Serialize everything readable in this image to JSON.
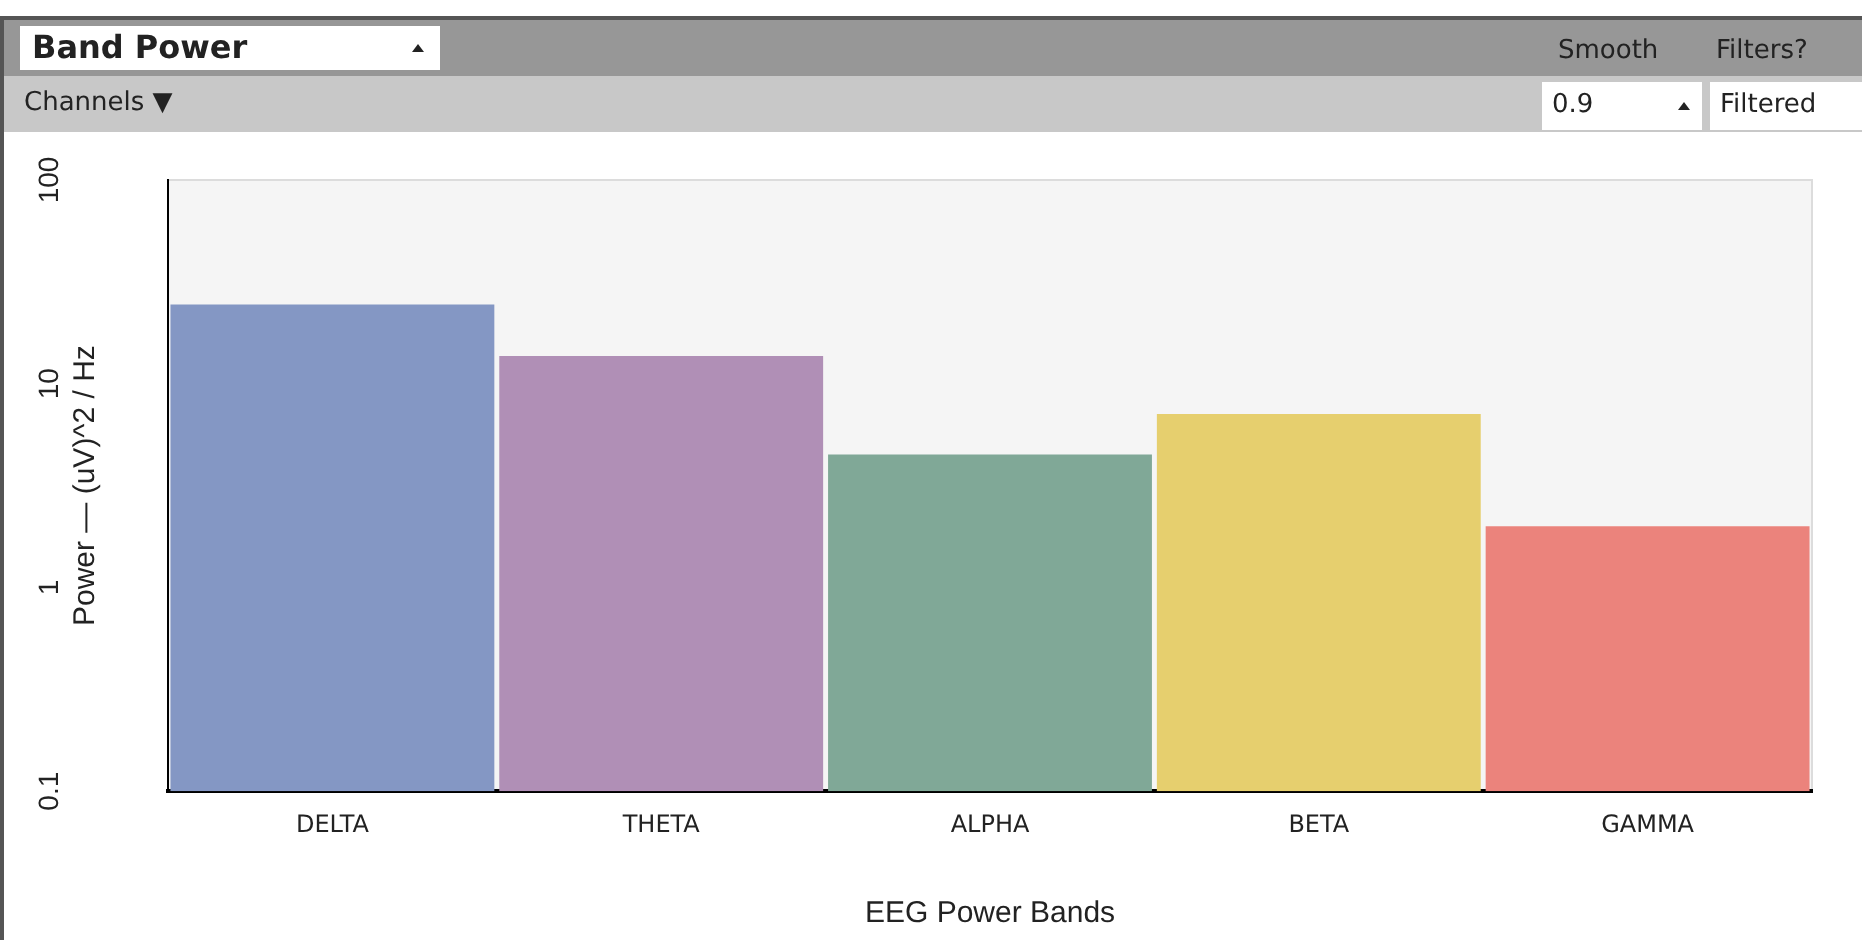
{
  "chart_data": {
    "type": "bar",
    "xlabel": "EEG Power Bands",
    "ylabel": "Power — (uV)^2 / Hz",
    "categories": [
      "DELTA",
      "THETA",
      "ALPHA",
      "BETA",
      "GAMMA"
    ],
    "values": [
      24.5,
      13.7,
      4.5,
      7.1,
      2.0
    ],
    "colors": [
      "#8497c4",
      "#b08fb6",
      "#80a897",
      "#e6cf6e",
      "#eb837c"
    ],
    "log": "y",
    "ylim": [
      0.1,
      100
    ],
    "yticks": [
      0.1,
      1,
      10,
      100
    ],
    "grid": false,
    "legend": false,
    "annotations": [
      "Band Power",
      "Smooth",
      "Filters?",
      "Channels ▼",
      "0.9",
      "Filtered"
    ]
  }
}
